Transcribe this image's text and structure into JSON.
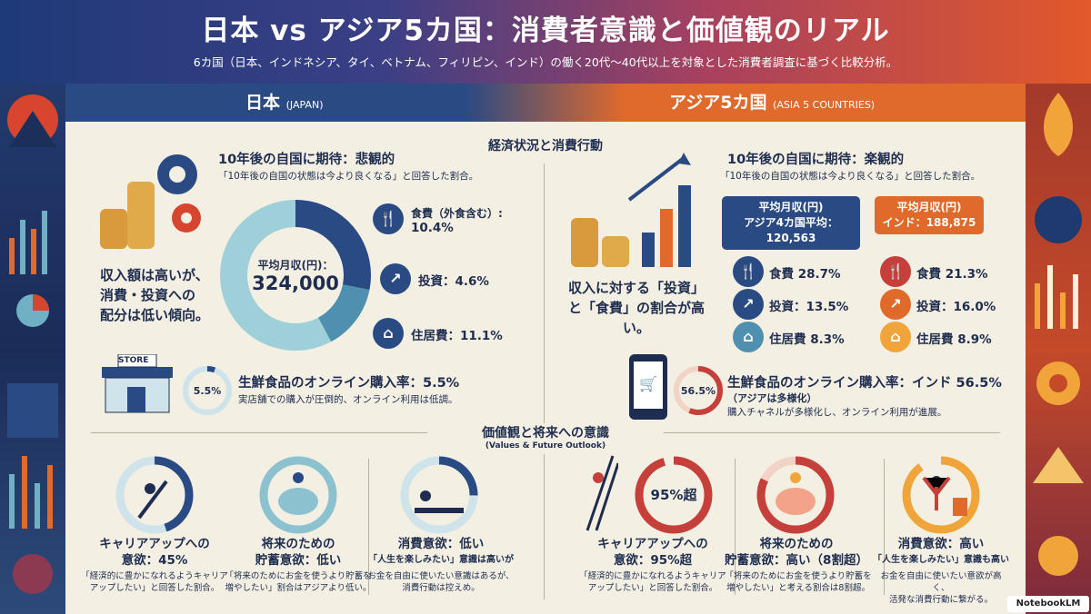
{
  "header": {
    "title": "日本 vs アジア5カ国：消費者意識と価値観のリアル",
    "subtitle": "6カ国（日本、インドネシア、タイ、ベトナム、フィリピン、インド）の働く20代〜40代以上を対象とした消費者調査に基づく比較分析。"
  },
  "bands": {
    "japan_label": "日本",
    "japan_en": "(JAPAN)",
    "asia_label": "アジア5カ国",
    "asia_en": "(ASIA 5 COUNTRIES)"
  },
  "section1": {
    "title": "経済状況と消費行動"
  },
  "japan": {
    "outlook_heading": "10年後の自国に期待：悲観的",
    "outlook_note": "「10年後の自国の状態は今より良くなる」と回答した割合。",
    "summary_lines": [
      "収入額は高いが、",
      "消費・投資への",
      "配分は低い傾向。"
    ],
    "donut_label": "平均月収(円)：",
    "donut_value": "324,000",
    "stats": [
      {
        "label_line1": "食費（外食含む）:",
        "label_line2": "10.4%",
        "icon": "fork-knife-icon"
      },
      {
        "label_line1": "投資：4.6%",
        "label_line2": "",
        "icon": "growth-chart-icon"
      },
      {
        "label_line1": "住居費：11.1%",
        "label_line2": "",
        "icon": "house-icon"
      }
    ],
    "store_label": "STORE",
    "online_ring": "5.5%",
    "online_heading": "生鮮食品のオンライン購入率：5.5%",
    "online_note": "実店舗での購入が圧倒的、オンライン利用は低調。"
  },
  "asia": {
    "outlook_heading": "10年後の自国に期待：楽観的",
    "outlook_note": "「10年後の自国の状態は今より良くなる」と回答した割合。",
    "summary_lines": [
      "収入に対する「投資」",
      "と「食費」の割合が高い。"
    ],
    "callout_avg_line1": "平均月収(円)",
    "callout_avg_line2": "アジア4カ国平均：120,563",
    "callout_india_line1": "平均月収(円)",
    "callout_india_line2": "インド：188,875",
    "avg_stats": [
      "食費 28.7%",
      "投資：13.5%",
      "住居費 8.3%"
    ],
    "india_stats": [
      "食費 21.3%",
      "投資：16.0%",
      "住居費 8.9%"
    ],
    "online_ring": "56.5%",
    "online_heading": "生鮮食品のオンライン購入率：インド 56.5%",
    "online_sub": "（アジアは多様化）",
    "online_note": "購入チャネルが多様化し、オンライン利用が進展。"
  },
  "section2": {
    "title": "価値観と将来への意識",
    "subtitle": "(Values & Future Outlook)"
  },
  "values_japan": [
    {
      "title_l1": "キャリアアップへの",
      "title_l2": "意欲：45%",
      "note_l1": "「経済的に豊かになれるようキャリア",
      "note_l2": "アップしたい」と回答した割合。",
      "ring": ""
    },
    {
      "title_l1": "将来のための",
      "title_l2": "貯蓄意欲：低い",
      "note_l1": "「将来のためにお金を使うより貯蓄を",
      "note_l2": "増やしたい」割合はアジアより低い。",
      "ring": ""
    },
    {
      "title_l1": "消費意欲：低い",
      "title_l2": "「人生を楽しみたい」意識は高いが",
      "note_l1": "お金を自由に使いたい意識はあるが、",
      "note_l2": "消費行動は控えめ。",
      "ring": ""
    }
  ],
  "values_asia": [
    {
      "title_l1": "キャリアアップへの",
      "title_l2": "意欲：95%超",
      "note_l1": "「経済的に豊かになれるようキャリア",
      "note_l2": "アップしたい」と回答した割合。",
      "ring": "95%超"
    },
    {
      "title_l1": "将来のための",
      "title_l2": "貯蓄意欲：高い（8割超）",
      "note_l1": "「将来のためにお金を使うより貯蓄を",
      "note_l2": "増やしたい」と考える割合は8割超。",
      "ring": ""
    },
    {
      "title_l1": "消費意欲：高い",
      "title_l2": "「人生を楽しみたい」意識も高い",
      "note_l1": "お金を自由に使いたい意欲が高く、",
      "note_l2": "活発な消費行動に繋がる。",
      "ring": ""
    }
  ],
  "watermark": "NotebookLM",
  "colors": {
    "japan": "#2a4a84",
    "asia": "#e06a2c",
    "japan_ring_light": "#8cc2cf",
    "asia_ring": "#c5403a"
  }
}
